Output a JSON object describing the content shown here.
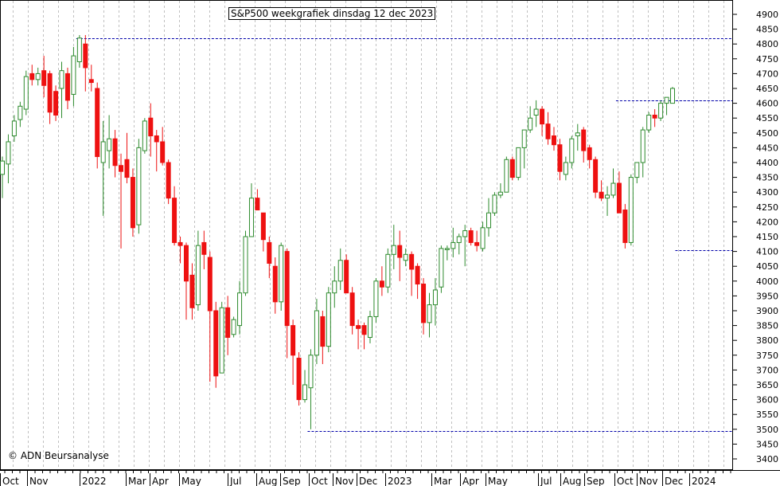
{
  "chart_data": {
    "type": "candlestick",
    "title": "S&P500 weekgrafiek dinsdag 12 dec 2023",
    "copyright": "© ADN Beursanalyse",
    "ylim": [
      3400,
      4900
    ],
    "yticks": [
      3400,
      3450,
      3500,
      3550,
      3600,
      3650,
      3700,
      3750,
      3800,
      3850,
      3900,
      3950,
      4000,
      4050,
      4100,
      4150,
      4200,
      4250,
      4300,
      4350,
      4400,
      4450,
      4500,
      4550,
      4600,
      4650,
      4700,
      4750,
      4800,
      4850,
      4900
    ],
    "grid": true,
    "x_labels": [
      "Oct",
      "Nov",
      "2022",
      "Mar",
      "Apr",
      "May",
      "Jul",
      "Aug",
      "Sep",
      "Oct",
      "Nov",
      "Dec",
      "2023",
      "Mar",
      "Apr",
      "May",
      "Jul",
      "Aug",
      "Sep",
      "Oct",
      "Nov",
      "Dec",
      "2024"
    ],
    "colors": {
      "up": "#2e8b2e",
      "down": "#ee1111",
      "guide": "#0000aa",
      "grid": "#c0c0c0"
    },
    "candles": [
      [
        4360,
        4405,
        4280,
        4420
      ],
      [
        4395,
        4470,
        4330,
        4495
      ],
      [
        4490,
        4540,
        4470,
        4560
      ],
      [
        4545,
        4590,
        4520,
        4605
      ],
      [
        4580,
        4690,
        4560,
        4710
      ],
      [
        4700,
        4680,
        4660,
        4730
      ],
      [
        4680,
        4700,
        4660,
        4720
      ],
      [
        4710,
        4660,
        4620,
        4760
      ],
      [
        4700,
        4570,
        4530,
        4710
      ],
      [
        4640,
        4560,
        4540,
        4660
      ],
      [
        4650,
        4710,
        4550,
        4740
      ],
      [
        4700,
        4610,
        4580,
        4720
      ],
      [
        4630,
        4760,
        4590,
        4790
      ],
      [
        4740,
        4820,
        4720,
        4830
      ],
      [
        4800,
        4720,
        4640,
        4830
      ],
      [
        4680,
        4670,
        4640,
        4730
      ],
      [
        4650,
        4420,
        4380,
        4670
      ],
      [
        4400,
        4470,
        4220,
        4540
      ],
      [
        4440,
        4480,
        4380,
        4560
      ],
      [
        4480,
        4390,
        4350,
        4510
      ],
      [
        4390,
        4370,
        4110,
        4430
      ],
      [
        4410,
        4350,
        4330,
        4500
      ],
      [
        4350,
        4180,
        4150,
        4380
      ],
      [
        4190,
        4450,
        4160,
        4480
      ],
      [
        4440,
        4540,
        4430,
        4550
      ],
      [
        4550,
        4490,
        4420,
        4600
      ],
      [
        4490,
        4470,
        4370,
        4510
      ],
      [
        4470,
        4400,
        4390,
        4520
      ],
      [
        4400,
        4280,
        4260,
        4410
      ],
      [
        4280,
        4130,
        4120,
        4320
      ],
      [
        4130,
        4120,
        4060,
        4150
      ],
      [
        4120,
        4000,
        3870,
        4130
      ],
      [
        4020,
        3910,
        3870,
        4060
      ],
      [
        3920,
        4120,
        3900,
        4170
      ],
      [
        4130,
        4090,
        4040,
        4170
      ],
      [
        4080,
        3900,
        3660,
        4100
      ],
      [
        3900,
        3680,
        3640,
        3930
      ],
      [
        3690,
        3910,
        3700,
        3930
      ],
      [
        3910,
        3810,
        3750,
        3950
      ],
      [
        3820,
        3870,
        3810,
        3880
      ],
      [
        3850,
        3960,
        3820,
        4000
      ],
      [
        3960,
        4150,
        3950,
        4170
      ],
      [
        4150,
        4280,
        4150,
        4330
      ],
      [
        4280,
        4240,
        4240,
        4310
      ],
      [
        4230,
        4140,
        4100,
        4230
      ],
      [
        4130,
        4060,
        4010,
        4150
      ],
      [
        4050,
        3930,
        3890,
        4080
      ],
      [
        3930,
        4120,
        3900,
        4130
      ],
      [
        4100,
        3850,
        3740,
        4110
      ],
      [
        3850,
        3750,
        3650,
        3870
      ],
      [
        3740,
        3600,
        3580,
        3760
      ],
      [
        3600,
        3650,
        3590,
        3700
      ],
      [
        3640,
        3750,
        3500,
        3770
      ],
      [
        3750,
        3900,
        3720,
        3940
      ],
      [
        3880,
        3780,
        3720,
        3900
      ],
      [
        3780,
        3960,
        3760,
        3980
      ],
      [
        3960,
        4000,
        3910,
        4050
      ],
      [
        4000,
        4070,
        3970,
        4110
      ],
      [
        4070,
        3960,
        3960,
        4090
      ],
      [
        3960,
        3850,
        3820,
        3980
      ],
      [
        3850,
        3840,
        3770,
        3870
      ],
      [
        3850,
        3820,
        3770,
        3860
      ],
      [
        3810,
        3880,
        3790,
        3900
      ],
      [
        3880,
        4000,
        3860,
        4010
      ],
      [
        4000,
        3980,
        3950,
        4050
      ],
      [
        3980,
        4090,
        3960,
        4110
      ],
      [
        4090,
        4120,
        4040,
        4190
      ],
      [
        4120,
        4080,
        4000,
        4170
      ],
      [
        4070,
        4090,
        4050,
        4110
      ],
      [
        4090,
        4040,
        3950,
        4100
      ],
      [
        4050,
        3990,
        3940,
        4060
      ],
      [
        3990,
        3860,
        3820,
        4010
      ],
      [
        3860,
        3920,
        3810,
        3960
      ],
      [
        3920,
        3970,
        3850,
        4010
      ],
      [
        3980,
        4110,
        3960,
        4120
      ],
      [
        4110,
        4110,
        4070,
        4120
      ],
      [
        4110,
        4130,
        4080,
        4180
      ],
      [
        4130,
        4150,
        4090,
        4160
      ],
      [
        4150,
        4170,
        4050,
        4190
      ],
      [
        4170,
        4130,
        4120,
        4180
      ],
      [
        4130,
        4120,
        4100,
        4170
      ],
      [
        4110,
        4180,
        4100,
        4200
      ],
      [
        4180,
        4230,
        4150,
        4280
      ],
      [
        4230,
        4290,
        4220,
        4300
      ],
      [
        4290,
        4300,
        4280,
        4330
      ],
      [
        4300,
        4410,
        4300,
        4420
      ],
      [
        4410,
        4350,
        4340,
        4420
      ],
      [
        4350,
        4450,
        4340,
        4450
      ],
      [
        4450,
        4510,
        4380,
        4510
      ],
      [
        4510,
        4550,
        4500,
        4590
      ],
      [
        4560,
        4580,
        4520,
        4610
      ],
      [
        4580,
        4530,
        4490,
        4590
      ],
      [
        4530,
        4480,
        4460,
        4570
      ],
      [
        4490,
        4460,
        4440,
        4520
      ],
      [
        4460,
        4370,
        4340,
        4480
      ],
      [
        4360,
        4400,
        4340,
        4420
      ],
      [
        4400,
        4480,
        4380,
        4490
      ],
      [
        4490,
        4500,
        4440,
        4530
      ],
      [
        4510,
        4440,
        4400,
        4520
      ],
      [
        4450,
        4410,
        4380,
        4460
      ],
      [
        4410,
        4300,
        4280,
        4420
      ],
      [
        4300,
        4280,
        4270,
        4340
      ],
      [
        4280,
        4290,
        4220,
        4320
      ],
      [
        4290,
        4330,
        4280,
        4380
      ],
      [
        4330,
        4230,
        4230,
        4370
      ],
      [
        4240,
        4130,
        4110,
        4260
      ],
      [
        4130,
        4350,
        4120,
        4360
      ],
      [
        4350,
        4400,
        4330,
        4400
      ],
      [
        4400,
        4510,
        4350,
        4520
      ],
      [
        4510,
        4560,
        4500,
        4570
      ],
      [
        4560,
        4550,
        4520,
        4580
      ],
      [
        4550,
        4600,
        4540,
        4610
      ],
      [
        4600,
        4620,
        4560,
        4620
      ],
      [
        4600,
        4650,
        4600,
        4655
      ]
    ],
    "guides": [
      {
        "y": 4820,
        "x_from_candle": 13
      },
      {
        "y": 4610,
        "x_from_candle": 104
      },
      {
        "y": 4610,
        "x_from_candle": 110
      },
      {
        "y": 4105,
        "x_from_candle": 114
      },
      {
        "y": 3495,
        "x_from_candle": 52
      }
    ]
  }
}
